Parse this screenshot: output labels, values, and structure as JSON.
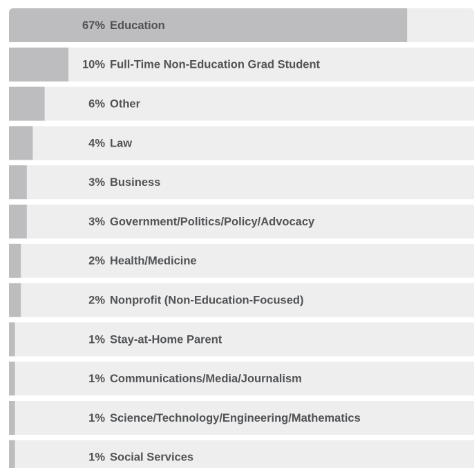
{
  "chart_data": {
    "type": "bar",
    "orientation": "horizontal",
    "categories": [
      "Education",
      "Full-Time Non-Education Grad Student",
      "Other",
      "Law",
      "Business",
      "Government/Politics/Policy/Advocacy",
      "Health/Medicine",
      "Nonprofit (Non-Education-Focused)",
      "Stay-at-Home Parent",
      "Communications/Media/Journalism",
      "Science/Technology/Engineering/Mathematics",
      "Social Services"
    ],
    "values": [
      67,
      10,
      6,
      4,
      3,
      3,
      2,
      2,
      1,
      1,
      1,
      1
    ],
    "value_labels": [
      "67%",
      "10%",
      "6%",
      "4%",
      "3%",
      "3%",
      "2%",
      "2%",
      "1%",
      "1%",
      "1%",
      "1%"
    ],
    "color": "#bdbdbf",
    "background_color": "#eeeeef"
  }
}
